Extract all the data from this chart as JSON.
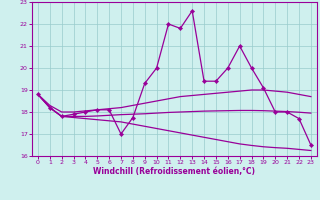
{
  "xlabel": "Windchill (Refroidissement éolien,°C)",
  "xlim": [
    -0.5,
    23.5
  ],
  "ylim": [
    16,
    23
  ],
  "yticks": [
    16,
    17,
    18,
    19,
    20,
    21,
    22,
    23
  ],
  "xticks": [
    0,
    1,
    2,
    3,
    4,
    5,
    6,
    7,
    8,
    9,
    10,
    11,
    12,
    13,
    14,
    15,
    16,
    17,
    18,
    19,
    20,
    21,
    22,
    23
  ],
  "bg_color": "#cff0ee",
  "line_color": "#990099",
  "grid_color": "#99cccc",
  "main_x": [
    0,
    1,
    2,
    3,
    4,
    5,
    6,
    7,
    8,
    9,
    10,
    11,
    12,
    13,
    14,
    15,
    16,
    17,
    18,
    19,
    20,
    21,
    22,
    23
  ],
  "main_y": [
    18.8,
    18.2,
    17.8,
    17.9,
    18.0,
    18.1,
    18.1,
    17.0,
    17.75,
    19.3,
    20.0,
    22.0,
    21.8,
    22.6,
    19.4,
    19.4,
    20.0,
    21.0,
    20.0,
    19.1,
    18.0,
    18.0,
    17.7,
    16.5
  ],
  "upper_y": [
    18.8,
    18.3,
    18.0,
    18.0,
    18.05,
    18.1,
    18.15,
    18.2,
    18.3,
    18.4,
    18.5,
    18.6,
    18.7,
    18.75,
    18.8,
    18.85,
    18.9,
    18.95,
    19.0,
    19.0,
    18.95,
    18.9,
    18.8,
    18.7
  ],
  "mid_y": [
    18.8,
    18.2,
    17.8,
    17.8,
    17.8,
    17.82,
    17.85,
    17.88,
    17.9,
    17.92,
    17.95,
    17.98,
    18.0,
    18.02,
    18.04,
    18.05,
    18.06,
    18.07,
    18.07,
    18.06,
    18.04,
    18.02,
    17.99,
    17.95
  ],
  "lower_y": [
    18.8,
    18.2,
    17.8,
    17.75,
    17.7,
    17.65,
    17.6,
    17.55,
    17.45,
    17.35,
    17.25,
    17.15,
    17.05,
    16.95,
    16.85,
    16.75,
    16.65,
    16.55,
    16.48,
    16.42,
    16.38,
    16.35,
    16.3,
    16.25
  ]
}
